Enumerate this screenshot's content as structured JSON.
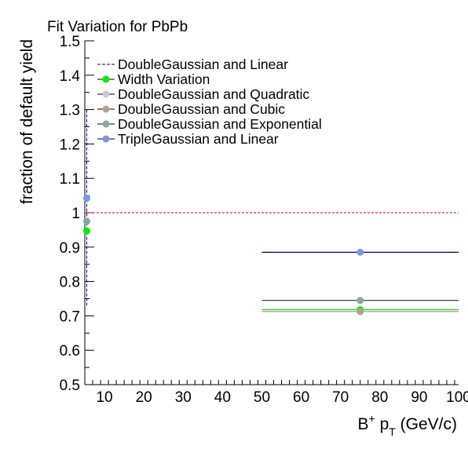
{
  "chart_data": {
    "type": "scatter",
    "title": "Fit Variation for PbPb",
    "ylabel": "fraction of default yield",
    "xlabel": {
      "main": "B",
      "sup": "+",
      "mid": " p",
      "sub": "T",
      "tail": " (GeV/c)"
    },
    "xlim": [
      5,
      100
    ],
    "ylim": [
      0.5,
      1.5
    ],
    "x_ticks": [
      10,
      20,
      30,
      40,
      50,
      60,
      70,
      80,
      90,
      100
    ],
    "y_ticks": [
      0.5,
      0.6,
      0.7,
      0.8,
      0.9,
      1,
      1.1,
      1.2,
      1.3,
      1.4,
      1.5
    ],
    "reference_line": {
      "y": 1,
      "color": "#cc0000",
      "style": "dashed"
    },
    "legend_placement": "top-left",
    "grid": false,
    "bins": [
      {
        "x": 5.5,
        "xlow": 5,
        "xhigh": 6
      },
      {
        "x": 75,
        "xlow": 50,
        "xhigh": 100
      }
    ],
    "series": [
      {
        "name": "DoubleGaussian and Linear",
        "color": "#000080",
        "marker": "none",
        "style": "dashed",
        "values": [
          1.0,
          1.0
        ]
      },
      {
        "name": "Width Variation",
        "color": "#00ee00",
        "marker": "circle",
        "values": [
          0.947,
          0.718
        ]
      },
      {
        "name": "DoubleGaussian and Quadratic",
        "color": "#c8c8d8",
        "marker": "circle",
        "values": [
          0.975,
          0.712
        ]
      },
      {
        "name": "DoubleGaussian and Cubic",
        "color": "#b8a090",
        "marker": "circle",
        "values": [
          0.975,
          0.713
        ]
      },
      {
        "name": "DoubleGaussian and Exponential",
        "color": "#88a8a0",
        "marker": "circle",
        "values": [
          0.975,
          0.745
        ]
      },
      {
        "name": "TripleGaussian and Linear",
        "color": "#7898e0",
        "marker": "circle",
        "values": [
          1.042,
          0.885
        ]
      }
    ]
  }
}
